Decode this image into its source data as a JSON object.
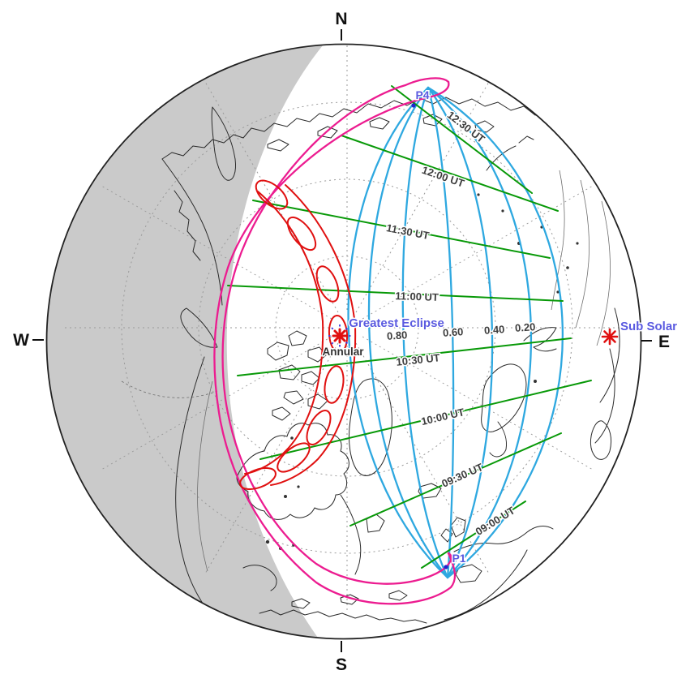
{
  "compass": {
    "north": "N",
    "south": "S",
    "east": "E",
    "west": "W"
  },
  "labels": {
    "p4": "P4",
    "p1": "P1",
    "greatest_eclipse": "Greatest Eclipse",
    "annular": "Annular",
    "sub_solar": "Sub Solar"
  },
  "time_curves": [
    {
      "label": "12:30 UT"
    },
    {
      "label": "12:00 UT"
    },
    {
      "label": "11:30 UT"
    },
    {
      "label": "11:00 UT"
    },
    {
      "label": "10:30 UT"
    },
    {
      "label": "10:00 UT"
    },
    {
      "label": "09:30 UT"
    },
    {
      "label": "09:00 UT"
    }
  ],
  "magnitude_contours": [
    {
      "label": "0.80",
      "value": 0.8
    },
    {
      "label": "0.60",
      "value": 0.6
    },
    {
      "label": "0.40",
      "value": 0.4
    },
    {
      "label": "0.20",
      "value": 0.2
    }
  ],
  "map_data": {
    "type": "map",
    "eclipse_type_label": "Annular",
    "contact_point_labels": [
      "P1",
      "P4"
    ],
    "special_point_labels": [
      "Greatest Eclipse",
      "Sub Solar"
    ],
    "maximum_eclipse_times_ut": [
      "12:30 UT",
      "12:00 UT",
      "11:30 UT",
      "11:00 UT",
      "10:30 UT",
      "10:00 UT",
      "09:30 UT",
      "09:00 UT"
    ],
    "magnitude_contour_values": [
      0.8,
      0.6,
      0.4,
      0.2
    ]
  },
  "colors": {
    "annular_path": "#e01010",
    "penumbral_limits": "#ec1c90",
    "max_eclipse_time_lines": "#089908",
    "contour_lines": "#2ea8e0",
    "point_label_text": "#5a5ae0",
    "night_shade": "#cacaca",
    "coastline": "#2b2b2b",
    "background": "#ffffff"
  }
}
